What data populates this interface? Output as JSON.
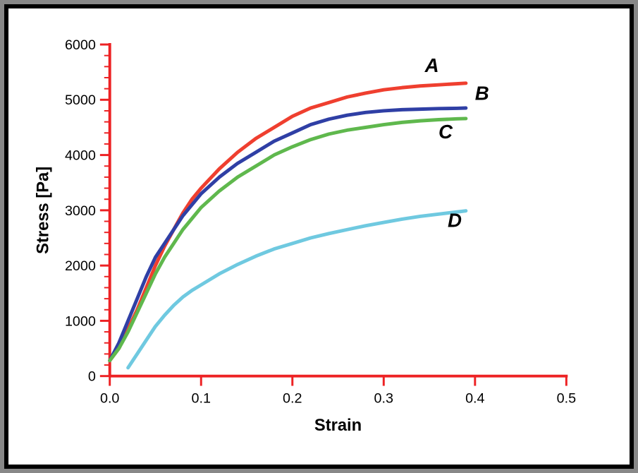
{
  "chart": {
    "type": "line",
    "background_color": "#ffffff",
    "frame_border_color": "#000000",
    "axis_color": "#ed2224",
    "axis_line_width": 4,
    "xlabel": "Strain",
    "ylabel": "Stress [Pa]",
    "label_fontsize": 24,
    "label_fontweight": "bold",
    "tick_fontsize": 20,
    "xlim": [
      0.0,
      0.5
    ],
    "ylim": [
      0,
      6000
    ],
    "xticks": [
      0.0,
      0.1,
      0.2,
      0.3,
      0.4,
      0.5
    ],
    "xtick_labels": [
      "0.0",
      "0.1",
      "0.2",
      "0.3",
      "0.4",
      "0.5"
    ],
    "yticks": [
      0,
      1000,
      2000,
      3000,
      4000,
      5000,
      6000
    ],
    "ytick_labels": [
      "0",
      "1000",
      "2000",
      "3000",
      "4000",
      "5000",
      "6000"
    ],
    "minor_y_ticks_per_interval": 5,
    "series_line_width": 5,
    "series_label_fontsize": 28,
    "series": [
      {
        "id": "A",
        "label": "A",
        "color": "#ef3f2f",
        "label_xy": [
          0.345,
          5500
        ],
        "data": [
          [
            0.0,
            280
          ],
          [
            0.01,
            500
          ],
          [
            0.02,
            850
          ],
          [
            0.03,
            1200
          ],
          [
            0.04,
            1600
          ],
          [
            0.05,
            2000
          ],
          [
            0.06,
            2350
          ],
          [
            0.07,
            2650
          ],
          [
            0.08,
            2950
          ],
          [
            0.09,
            3200
          ],
          [
            0.1,
            3400
          ],
          [
            0.12,
            3750
          ],
          [
            0.14,
            4050
          ],
          [
            0.16,
            4300
          ],
          [
            0.18,
            4500
          ],
          [
            0.2,
            4700
          ],
          [
            0.22,
            4850
          ],
          [
            0.24,
            4950
          ],
          [
            0.26,
            5050
          ],
          [
            0.28,
            5120
          ],
          [
            0.3,
            5180
          ],
          [
            0.32,
            5220
          ],
          [
            0.34,
            5250
          ],
          [
            0.36,
            5270
          ],
          [
            0.38,
            5290
          ],
          [
            0.39,
            5300
          ]
        ]
      },
      {
        "id": "B",
        "label": "B",
        "color": "#2f3fa5",
        "label_xy": [
          0.4,
          5000
        ],
        "data": [
          [
            0.0,
            280
          ],
          [
            0.01,
            600
          ],
          [
            0.02,
            1000
          ],
          [
            0.03,
            1400
          ],
          [
            0.04,
            1800
          ],
          [
            0.05,
            2150
          ],
          [
            0.06,
            2400
          ],
          [
            0.07,
            2650
          ],
          [
            0.08,
            2900
          ],
          [
            0.09,
            3100
          ],
          [
            0.1,
            3300
          ],
          [
            0.12,
            3600
          ],
          [
            0.14,
            3850
          ],
          [
            0.16,
            4050
          ],
          [
            0.18,
            4250
          ],
          [
            0.2,
            4400
          ],
          [
            0.22,
            4550
          ],
          [
            0.24,
            4650
          ],
          [
            0.26,
            4720
          ],
          [
            0.28,
            4770
          ],
          [
            0.3,
            4800
          ],
          [
            0.32,
            4820
          ],
          [
            0.34,
            4830
          ],
          [
            0.36,
            4840
          ],
          [
            0.38,
            4845
          ],
          [
            0.39,
            4850
          ]
        ]
      },
      {
        "id": "C",
        "label": "C",
        "color": "#5fb84d",
        "label_xy": [
          0.36,
          4300
        ],
        "data": [
          [
            0.0,
            280
          ],
          [
            0.01,
            500
          ],
          [
            0.02,
            800
          ],
          [
            0.03,
            1150
          ],
          [
            0.04,
            1500
          ],
          [
            0.05,
            1850
          ],
          [
            0.06,
            2150
          ],
          [
            0.07,
            2400
          ],
          [
            0.08,
            2650
          ],
          [
            0.09,
            2850
          ],
          [
            0.1,
            3050
          ],
          [
            0.12,
            3350
          ],
          [
            0.14,
            3600
          ],
          [
            0.16,
            3800
          ],
          [
            0.18,
            4000
          ],
          [
            0.2,
            4150
          ],
          [
            0.22,
            4280
          ],
          [
            0.24,
            4380
          ],
          [
            0.26,
            4450
          ],
          [
            0.28,
            4500
          ],
          [
            0.3,
            4550
          ],
          [
            0.32,
            4590
          ],
          [
            0.34,
            4620
          ],
          [
            0.36,
            4640
          ],
          [
            0.38,
            4655
          ],
          [
            0.39,
            4660
          ]
        ]
      },
      {
        "id": "D",
        "label": "D",
        "color": "#6fc9e0",
        "label_xy": [
          0.37,
          2700
        ],
        "data": [
          [
            0.02,
            150
          ],
          [
            0.03,
            400
          ],
          [
            0.04,
            650
          ],
          [
            0.05,
            900
          ],
          [
            0.06,
            1100
          ],
          [
            0.07,
            1280
          ],
          [
            0.08,
            1430
          ],
          [
            0.09,
            1550
          ],
          [
            0.1,
            1650
          ],
          [
            0.12,
            1850
          ],
          [
            0.14,
            2020
          ],
          [
            0.16,
            2170
          ],
          [
            0.18,
            2300
          ],
          [
            0.2,
            2400
          ],
          [
            0.22,
            2500
          ],
          [
            0.24,
            2580
          ],
          [
            0.26,
            2650
          ],
          [
            0.28,
            2720
          ],
          [
            0.3,
            2780
          ],
          [
            0.32,
            2840
          ],
          [
            0.34,
            2890
          ],
          [
            0.36,
            2930
          ],
          [
            0.38,
            2970
          ],
          [
            0.39,
            2990
          ]
        ]
      }
    ]
  }
}
